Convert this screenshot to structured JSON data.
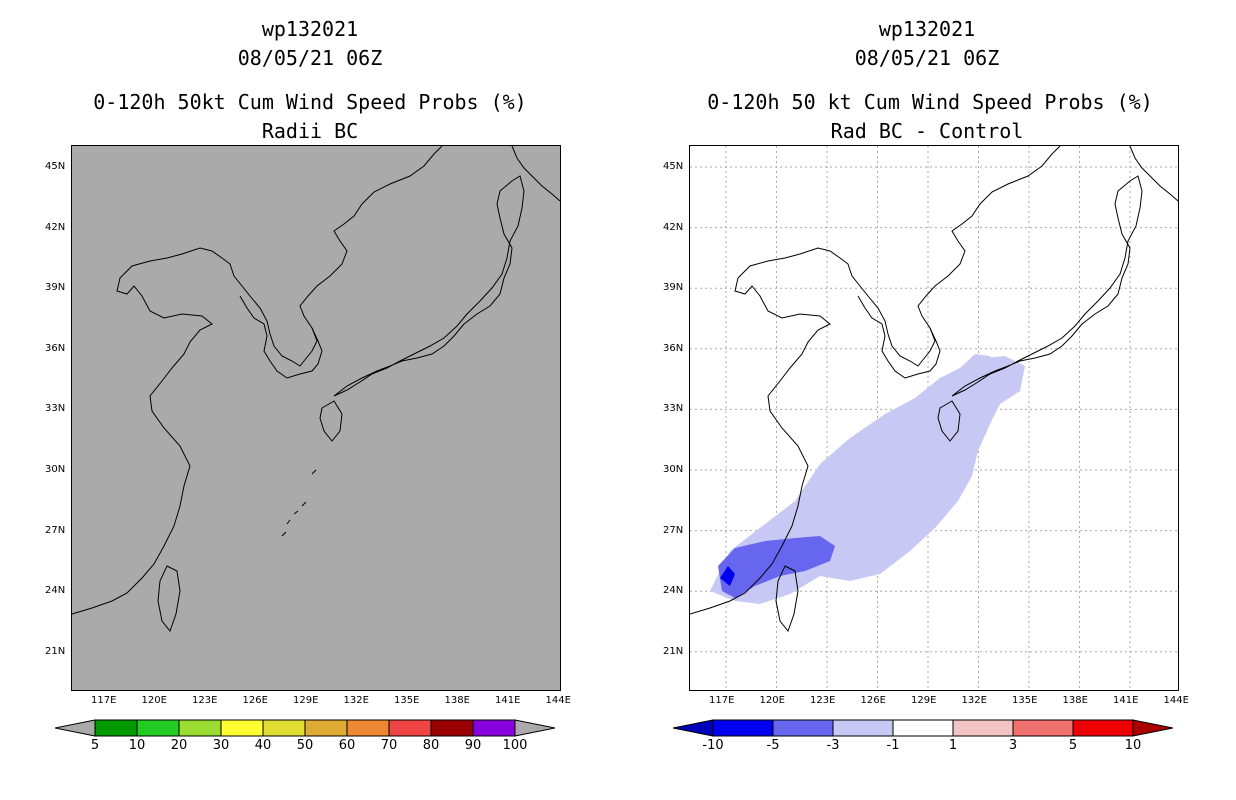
{
  "left": {
    "storm_id": "wp132021",
    "datetime": "08/05/21 06Z",
    "title": "0-120h 50kt Cum Wind Speed Probs (%)",
    "subtitle": "Radii BC",
    "background": "#aaaaaa",
    "colorbar": {
      "colors": [
        "#009900",
        "#22cc22",
        "#99dd33",
        "#ffff33",
        "#dddd33",
        "#ddaa33",
        "#ee8833",
        "#ee4444",
        "#990000",
        "#8800dd"
      ],
      "labels": [
        "5",
        "10",
        "20",
        "30",
        "40",
        "50",
        "60",
        "70",
        "80",
        "90",
        "100"
      ]
    }
  },
  "right": {
    "storm_id": "wp132021",
    "datetime": "08/05/21 06Z",
    "title": "0-120h 50 kt Cum Wind Speed Probs (%)",
    "subtitle": "Rad BC - Control",
    "colorbar": {
      "colors": [
        "#0000bb",
        "#0000ee",
        "#6666ee",
        "#c8c8f4",
        "#ffffff",
        "#f4c4c4",
        "#f07070",
        "#ee0000",
        "#aa0000"
      ],
      "labels": [
        "-10",
        "-5",
        "-3",
        "-1",
        "1",
        "3",
        "5",
        "10"
      ]
    }
  },
  "axes": {
    "lat_labels": [
      "45N",
      "42N",
      "39N",
      "36N",
      "33N",
      "30N",
      "27N",
      "24N",
      "21N"
    ],
    "lon_labels": [
      "117E",
      "120E",
      "123E",
      "126E",
      "129E",
      "132E",
      "135E",
      "138E",
      "141E",
      "144E"
    ]
  }
}
